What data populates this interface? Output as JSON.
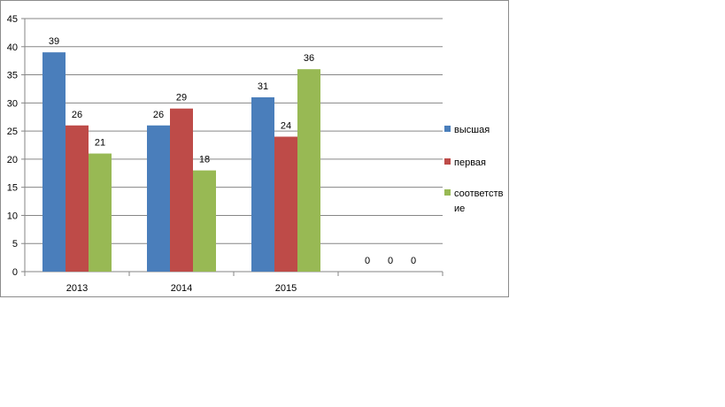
{
  "chart_data": {
    "type": "bar",
    "title": "",
    "xlabel": "",
    "ylabel": "",
    "categories": [
      "2013",
      "2014",
      "2015",
      ""
    ],
    "series": [
      {
        "name": "высшая",
        "values": [
          39,
          26,
          31,
          0
        ],
        "color": "#4A7EBB"
      },
      {
        "name": "первая",
        "values": [
          26,
          29,
          24,
          0
        ],
        "color": "#BE4B48"
      },
      {
        "name": "соответствие",
        "legend_lines": [
          "соответств",
          "ие"
        ],
        "values": [
          21,
          18,
          36,
          0
        ],
        "color": "#98B954"
      }
    ],
    "ylim": [
      0,
      45
    ],
    "yticks": [
      0,
      5,
      10,
      15,
      20,
      25,
      30,
      35,
      40,
      45
    ],
    "grid": true,
    "legend": "right",
    "data_labels": true
  }
}
